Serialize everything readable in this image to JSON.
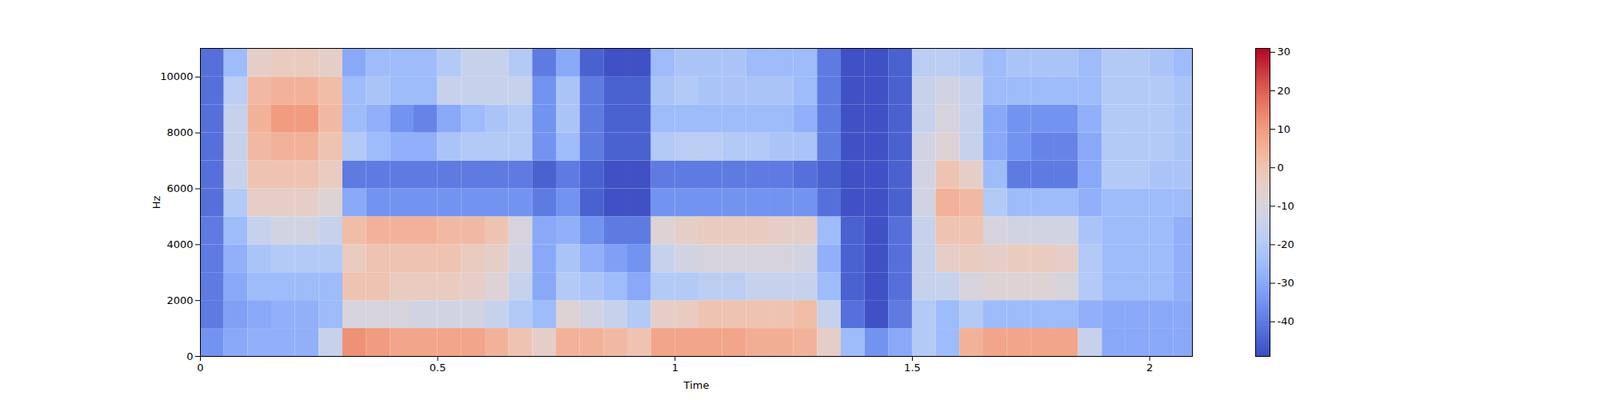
{
  "chart_data": {
    "type": "heatmap",
    "x_label": "Time",
    "y_label": "Hz",
    "xlim": [
      0,
      2.09
    ],
    "xticks": [
      0,
      0.5,
      1,
      1.5,
      2
    ],
    "ylim": [
      0,
      11025
    ],
    "yticks": [
      0,
      2000,
      4000,
      6000,
      8000,
      10000
    ],
    "grid": false,
    "time_bins": [
      0,
      0.05,
      0.1,
      0.15,
      0.2,
      0.25,
      0.3,
      0.35,
      0.4,
      0.45,
      0.5,
      0.55,
      0.6,
      0.65,
      0.7,
      0.75,
      0.8,
      0.85,
      0.9,
      0.95,
      1.0,
      1.05,
      1.1,
      1.15,
      1.2,
      1.25,
      1.3,
      1.35,
      1.4,
      1.45,
      1.5,
      1.55,
      1.6,
      1.65,
      1.7,
      1.75,
      1.8,
      1.85,
      1.9,
      1.95,
      2.0,
      2.05,
      2.09
    ],
    "freq_bins": [
      0,
      1000,
      2000,
      3000,
      4000,
      5000,
      6000,
      7000,
      8000,
      9000,
      10000,
      11025
    ],
    "cells": [
      [
        -35,
        -40,
        -40,
        -40,
        -40,
        -42,
        -42,
        -42,
        -42,
        -42,
        -42
      ],
      [
        -30,
        -32,
        -30,
        -28,
        -25,
        -20,
        -15,
        -15,
        -15,
        -18,
        -25
      ],
      [
        -28,
        -30,
        -25,
        -22,
        -15,
        -5,
        0,
        3,
        5,
        3,
        -5
      ],
      [
        -28,
        -28,
        -25,
        -20,
        -12,
        -5,
        0,
        5,
        10,
        5,
        -3
      ],
      [
        -28,
        -28,
        -25,
        -20,
        -12,
        -5,
        0,
        5,
        10,
        5,
        -3
      ],
      [
        -15,
        -25,
        -25,
        -20,
        -15,
        -8,
        -3,
        0,
        3,
        2,
        -5
      ],
      [
        12,
        -10,
        0,
        -3,
        2,
        -30,
        -40,
        -20,
        -25,
        -25,
        -30
      ],
      [
        10,
        -10,
        0,
        0,
        5,
        -35,
        -40,
        -25,
        -28,
        -22,
        -25
      ],
      [
        8,
        -10,
        -3,
        0,
        5,
        -35,
        -40,
        -28,
        -35,
        -25,
        -25
      ],
      [
        8,
        -12,
        -3,
        0,
        5,
        -35,
        -40,
        -28,
        -38,
        -25,
        -25
      ],
      [
        8,
        -12,
        -3,
        0,
        3,
        -35,
        -40,
        -22,
        -30,
        -15,
        -20
      ],
      [
        8,
        -12,
        -5,
        -3,
        3,
        -35,
        -40,
        -20,
        -25,
        -15,
        -15
      ],
      [
        5,
        -15,
        -8,
        -5,
        0,
        -35,
        -40,
        -20,
        -22,
        -15,
        -15
      ],
      [
        0,
        -20,
        -15,
        -12,
        -10,
        -35,
        -40,
        -20,
        -20,
        -15,
        -20
      ],
      [
        -5,
        -25,
        -30,
        -30,
        -30,
        -40,
        -45,
        -35,
        -35,
        -35,
        -40
      ],
      [
        5,
        -8,
        -20,
        -22,
        -28,
        -35,
        -40,
        -25,
        -22,
        -22,
        -30
      ],
      [
        5,
        -12,
        -22,
        -28,
        -35,
        -45,
        -45,
        -40,
        -40,
        -40,
        -45
      ],
      [
        3,
        -15,
        -25,
        -32,
        -40,
        -48,
        -48,
        -45,
        -45,
        -45,
        -48
      ],
      [
        0,
        -20,
        -30,
        -35,
        -40,
        -48,
        -48,
        -45,
        -45,
        -45,
        -48
      ],
      [
        8,
        -5,
        -20,
        -15,
        -8,
        -35,
        -40,
        -20,
        -25,
        -22,
        -25
      ],
      [
        8,
        -3,
        -20,
        -12,
        -5,
        -35,
        -40,
        -18,
        -25,
        -20,
        -22
      ],
      [
        8,
        0,
        -18,
        -10,
        -3,
        -35,
        -40,
        -18,
        -25,
        -22,
        -22
      ],
      [
        8,
        0,
        -18,
        -10,
        -3,
        -35,
        -40,
        -20,
        -25,
        -22,
        -22
      ],
      [
        6,
        0,
        -15,
        -10,
        -3,
        -35,
        -40,
        -20,
        -25,
        -22,
        -25
      ],
      [
        6,
        0,
        -15,
        -10,
        -5,
        -35,
        -40,
        -22,
        -25,
        -22,
        -25
      ],
      [
        5,
        2,
        -15,
        -12,
        -5,
        -35,
        -42,
        -22,
        -28,
        -25,
        -25
      ],
      [
        -5,
        -15,
        -25,
        -28,
        -25,
        -42,
        -45,
        -40,
        -40,
        -40,
        -40
      ],
      [
        -25,
        -42,
        -45,
        -45,
        -45,
        -48,
        -48,
        -48,
        -48,
        -48,
        -48
      ],
      [
        -35,
        -48,
        -48,
        -48,
        -48,
        -48,
        -48,
        -48,
        -48,
        -48,
        -48
      ],
      [
        -30,
        -40,
        -42,
        -42,
        -42,
        -45,
        -45,
        -45,
        -45,
        -45,
        -45
      ],
      [
        -20,
        -20,
        -15,
        -15,
        -15,
        -12,
        -12,
        -12,
        -15,
        -15,
        -18
      ],
      [
        -25,
        -25,
        -15,
        -5,
        0,
        5,
        0,
        -8,
        -10,
        -12,
        -18
      ],
      [
        5,
        -20,
        -10,
        -3,
        0,
        3,
        -5,
        -15,
        -15,
        -15,
        -20
      ],
      [
        8,
        -25,
        -8,
        -5,
        -10,
        -20,
        -25,
        -30,
        -30,
        -25,
        -25
      ],
      [
        8,
        -25,
        -8,
        -3,
        -12,
        -25,
        -40,
        -35,
        -35,
        -25,
        -22
      ],
      [
        8,
        -25,
        -8,
        -3,
        -12,
        -25,
        -40,
        -38,
        -35,
        -25,
        -22
      ],
      [
        8,
        -25,
        -10,
        -5,
        -12,
        -25,
        -40,
        -38,
        -35,
        -25,
        -22
      ],
      [
        -15,
        -28,
        -20,
        -20,
        -22,
        -28,
        -30,
        -30,
        -28,
        -25,
        -25
      ],
      [
        -30,
        -30,
        -25,
        -25,
        -25,
        -25,
        -20,
        -20,
        -20,
        -20,
        -20
      ],
      [
        -30,
        -30,
        -25,
        -25,
        -25,
        -25,
        -20,
        -20,
        -20,
        -20,
        -20
      ],
      [
        -30,
        -30,
        -25,
        -25,
        -25,
        -25,
        -22,
        -20,
        -20,
        -20,
        -22
      ],
      [
        -30,
        -30,
        -28,
        -28,
        -28,
        -25,
        -22,
        -22,
        -22,
        -22,
        -25
      ]
    ],
    "colorbar": {
      "range": [
        -49,
        31
      ],
      "ticks": [
        -40,
        -30,
        -20,
        -10,
        0,
        10,
        20,
        30
      ]
    }
  }
}
